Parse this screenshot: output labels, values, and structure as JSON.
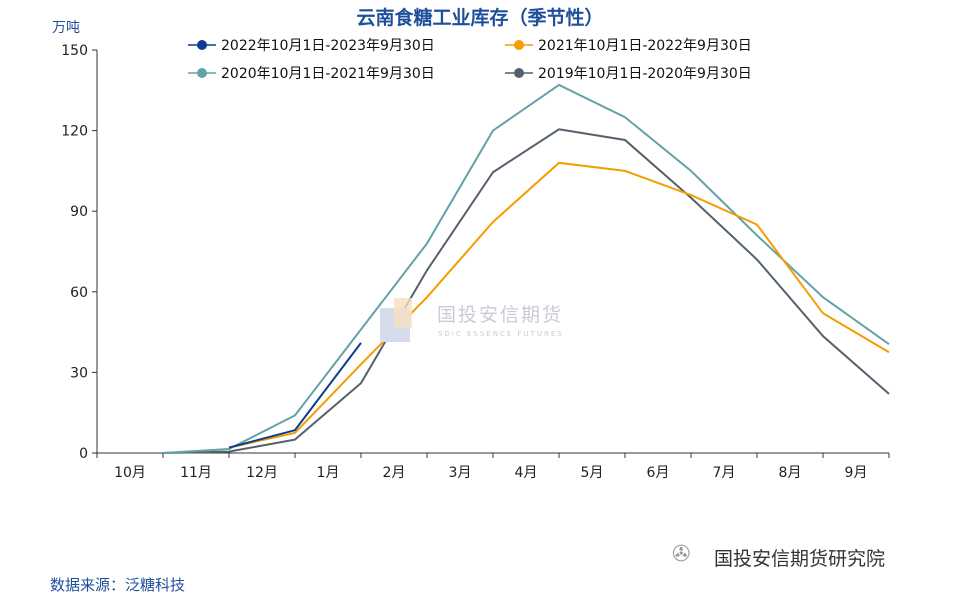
{
  "chart_data": {
    "type": "line",
    "title": "云南食糖工业库存（季节性）",
    "ylabel": "万吨",
    "xlabel": "",
    "ylim": [
      0,
      150
    ],
    "yticks": [
      0,
      30,
      60,
      90,
      120,
      150
    ],
    "categories": [
      "10月",
      "11月",
      "12月",
      "1月",
      "2月",
      "3月",
      "4月",
      "5月",
      "6月",
      "7月",
      "8月",
      "9月"
    ],
    "grid": false,
    "legend_placement": "top",
    "series": [
      {
        "name": "2022年10月1日-2023年9月30日",
        "color": "#0b3d91",
        "values": [
          null,
          2,
          8.5,
          41,
          null,
          null,
          null,
          null,
          null,
          null,
          null,
          null
        ]
      },
      {
        "name": "2021年10月1日-2022年9月30日",
        "color": "#f59d00",
        "values": [
          null,
          2,
          7.5,
          33,
          58,
          86,
          108,
          105,
          96,
          85,
          52,
          37.5
        ]
      },
      {
        "name": "2020年10月1日-2021年9月30日",
        "color": "#62a3a8",
        "values": [
          0,
          1.5,
          14,
          46,
          78,
          120,
          137,
          125,
          105,
          81,
          58,
          40.5
        ]
      },
      {
        "name": "2019年10月1日-2020年9月30日",
        "color": "#54616c",
        "values": [
          0,
          0.5,
          5,
          26,
          68,
          104.5,
          120.5,
          116.5,
          95,
          72,
          43.5,
          22
        ]
      }
    ]
  },
  "source": "数据来源：泛糖科技",
  "watermark": {
    "brand": "国投安信期货",
    "brand_en": "SDIC ESSENCE FUTURES",
    "account": "国投安信期货研究院",
    "icon": "wechat-icon"
  }
}
